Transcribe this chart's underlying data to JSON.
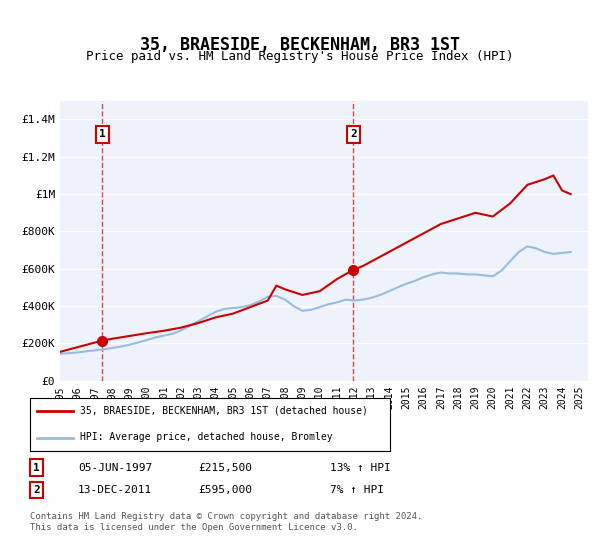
{
  "title": "35, BRAESIDE, BECKENHAM, BR3 1ST",
  "subtitle": "Price paid vs. HM Land Registry's House Price Index (HPI)",
  "xlabel": "",
  "ylabel": "",
  "ylim": [
    0,
    1500000
  ],
  "yticks": [
    0,
    200000,
    400000,
    600000,
    800000,
    1000000,
    1200000,
    1400000
  ],
  "ytick_labels": [
    "£0",
    "£200K",
    "£400K",
    "£600K",
    "£800K",
    "£1M",
    "£1.2M",
    "£1.4M"
  ],
  "background_color": "#eef3fb",
  "plot_bg_color": "#eef3fb",
  "grid_color": "#ffffff",
  "sale_color": "#cc0000",
  "hpi_color": "#99bbdd",
  "marker_color": "#cc0000",
  "annotation_box_color": "#cc0000",
  "sale1_year": 1997.44,
  "sale1_price": 215500,
  "sale1_label": "1",
  "sale2_year": 2011.95,
  "sale2_price": 595000,
  "sale2_label": "2",
  "legend_label_sale": "35, BRAESIDE, BECKENHAM, BR3 1ST (detached house)",
  "legend_label_hpi": "HPI: Average price, detached house, Bromley",
  "table_row1": [
    "1",
    "05-JUN-1997",
    "£215,500",
    "13% ↑ HPI"
  ],
  "table_row2": [
    "2",
    "13-DEC-2011",
    "£595,000",
    "7% ↑ HPI"
  ],
  "footer": "Contains HM Land Registry data © Crown copyright and database right 2024.\nThis data is licensed under the Open Government Licence v3.0.",
  "hpi_years": [
    1995.0,
    1995.5,
    1996.0,
    1996.5,
    1997.0,
    1997.5,
    1998.0,
    1998.5,
    1999.0,
    1999.5,
    2000.0,
    2000.5,
    2001.0,
    2001.5,
    2002.0,
    2002.5,
    2003.0,
    2003.5,
    2004.0,
    2004.5,
    2005.0,
    2005.5,
    2006.0,
    2006.5,
    2007.0,
    2007.5,
    2008.0,
    2008.5,
    2009.0,
    2009.5,
    2010.0,
    2010.5,
    2011.0,
    2011.5,
    2012.0,
    2012.5,
    2013.0,
    2013.5,
    2014.0,
    2014.5,
    2015.0,
    2015.5,
    2016.0,
    2016.5,
    2017.0,
    2017.5,
    2018.0,
    2018.5,
    2019.0,
    2019.5,
    2020.0,
    2020.5,
    2021.0,
    2021.5,
    2022.0,
    2022.5,
    2023.0,
    2023.5,
    2024.0,
    2024.5
  ],
  "hpi_values": [
    145000,
    148000,
    152000,
    158000,
    163000,
    168000,
    176000,
    183000,
    193000,
    205000,
    218000,
    232000,
    242000,
    252000,
    270000,
    295000,
    320000,
    345000,
    370000,
    385000,
    390000,
    395000,
    405000,
    425000,
    450000,
    455000,
    435000,
    400000,
    375000,
    380000,
    395000,
    410000,
    420000,
    435000,
    430000,
    435000,
    445000,
    460000,
    480000,
    500000,
    520000,
    535000,
    555000,
    570000,
    580000,
    575000,
    575000,
    570000,
    570000,
    565000,
    560000,
    590000,
    640000,
    690000,
    720000,
    710000,
    690000,
    680000,
    685000,
    690000
  ],
  "sale_years": [
    1995.0,
    1997.44,
    1997.44,
    1998.0,
    1999.0,
    2000.0,
    2001.0,
    2002.0,
    2003.0,
    2004.0,
    2005.0,
    2006.0,
    2007.0,
    2007.5,
    2008.0,
    2009.0,
    2010.0,
    2011.0,
    2011.95,
    2011.95,
    2012.5,
    2013.0,
    2014.0,
    2015.0,
    2016.0,
    2017.0,
    2018.0,
    2019.0,
    2020.0,
    2021.0,
    2022.0,
    2023.0,
    2023.5,
    2024.0,
    2024.5
  ],
  "sale_values": [
    155000,
    215500,
    215500,
    225000,
    240000,
    255000,
    268000,
    285000,
    310000,
    340000,
    360000,
    395000,
    430000,
    510000,
    490000,
    460000,
    480000,
    545000,
    595000,
    595000,
    615000,
    640000,
    690000,
    740000,
    790000,
    840000,
    870000,
    900000,
    880000,
    950000,
    1050000,
    1080000,
    1100000,
    1020000,
    1000000
  ],
  "xmin": 1995.0,
  "xmax": 2025.5,
  "xticks": [
    1995,
    1996,
    1997,
    1998,
    1999,
    2000,
    2001,
    2002,
    2003,
    2004,
    2005,
    2006,
    2007,
    2008,
    2009,
    2010,
    2011,
    2012,
    2013,
    2014,
    2015,
    2016,
    2017,
    2018,
    2019,
    2020,
    2021,
    2022,
    2023,
    2024,
    2025
  ]
}
